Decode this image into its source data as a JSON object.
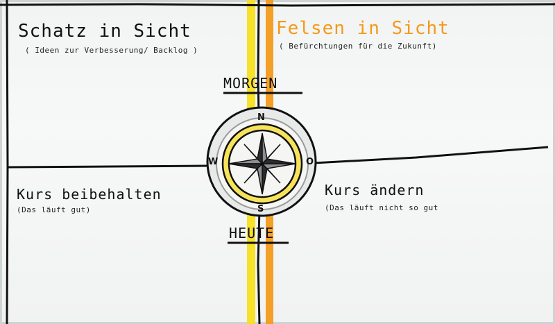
{
  "quadrants": {
    "top_left": {
      "title": "Schatz in Sicht",
      "subtitle": "( Ideen zur Verbesserung/ Backlog )"
    },
    "top_right": {
      "title": "Felsen in Sicht",
      "subtitle": "( Befürchtungen für die Zukunft)"
    },
    "bottom_left": {
      "title": "Kurs beibehalten",
      "subtitle": "(Das läuft gut)"
    },
    "bottom_right": {
      "title": "Kurs ändern",
      "subtitle": "(Das läuft nicht so gut"
    }
  },
  "center": {
    "top_label": "MORGEN",
    "bottom_label": "HEUTE"
  },
  "compass": {
    "north": "N",
    "south": "S",
    "west": "W",
    "east": "O"
  },
  "colors": {
    "marker_black": "#111111",
    "yellow": "#f7df1e",
    "orange": "#f39a1a",
    "gold": "#f0c419",
    "paper": "#f4f5f5"
  }
}
